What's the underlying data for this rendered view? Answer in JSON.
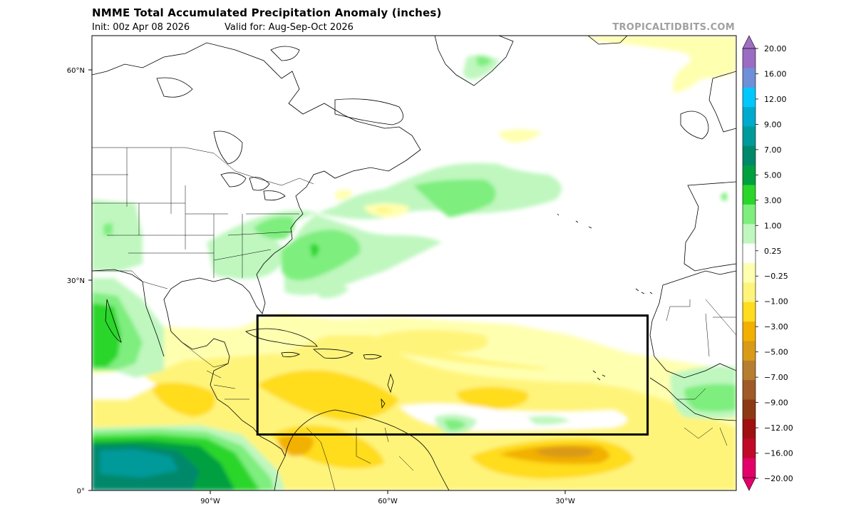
{
  "header": {
    "title": "NMME Total Accumulated Precipitation Anomaly (inches)",
    "init": "Init: 00z Apr 08 2026",
    "valid": "Valid for: Aug-Sep-Oct 2026",
    "site": "TROPICALTIDBITS.COM"
  },
  "axes": {
    "lat_labels": [
      "60°N",
      "30°N",
      "0°"
    ],
    "lon_labels": [
      "90°W",
      "60°W",
      "30°W"
    ]
  },
  "colorbar": {
    "labels": [
      "20.00",
      "16.00",
      "12.00",
      "9.00",
      "7.00",
      "5.00",
      "3.00",
      "1.00",
      "0.25",
      "−0.25",
      "−1.00",
      "−3.00",
      "−5.00",
      "−7.00",
      "−9.00",
      "−12.00",
      "−16.00",
      "−20.00"
    ],
    "colors_top_to_bottom": [
      "#9a6cc4",
      "#6f8fd8",
      "#00c8ff",
      "#00aacc",
      "#009a9a",
      "#00886a",
      "#00a040",
      "#2ad62a",
      "#7eee7e",
      "#bff7bf",
      "#ffffff",
      "#ffffb0",
      "#fff47a",
      "#ffdc1e",
      "#f2b000",
      "#d99a18",
      "#b77e30",
      "#a05a28",
      "#8c3a14",
      "#a01010",
      "#c00a28",
      "#e4006a"
    ]
  },
  "highlight_box": {
    "lon_west": -82,
    "lon_east": -16,
    "lat_south": 8,
    "lat_north": 25
  }
}
